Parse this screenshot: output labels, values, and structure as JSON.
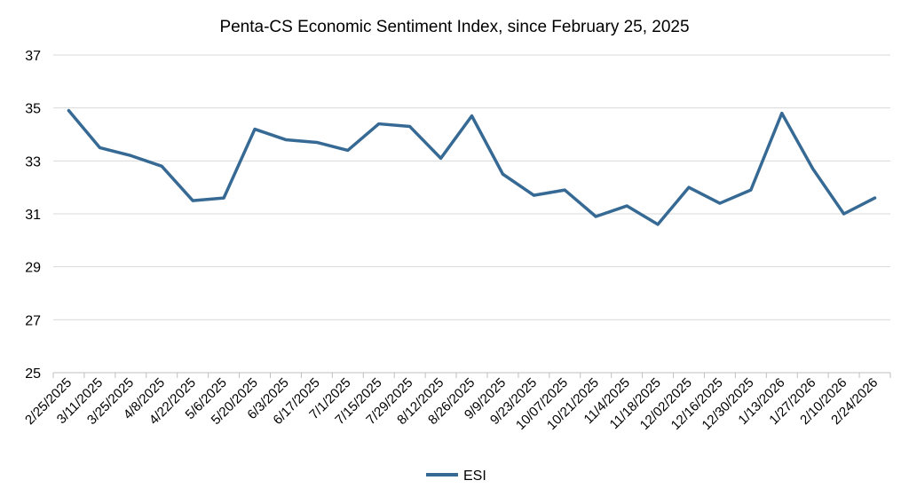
{
  "chart_data": {
    "type": "line",
    "title": "Penta-CS Economic Sentiment Index, since February 25, 2025",
    "xlabel": "",
    "ylabel": "",
    "ylim": [
      25,
      37
    ],
    "yticks": [
      25,
      27,
      29,
      31,
      33,
      35,
      37
    ],
    "grid": true,
    "legend_position": "bottom",
    "categories": [
      "2/25/2025",
      "3/11/2025",
      "3/25/2025",
      "4/8/2025",
      "4/22/2025",
      "5/6/2025",
      "5/20/2025",
      "6/3/2025",
      "6/17/2025",
      "7/1/2025",
      "7/15/2025",
      "7/29/2025",
      "8/12/2025",
      "8/26/2025",
      "9/9/2025",
      "9/23/2025",
      "10/07/2025",
      "10/21/2025",
      "11/4/2025",
      "11/18/2025",
      "12/02/2025",
      "12/16/2025",
      "12/30/2025",
      "1/13/2026",
      "1/27/2026",
      "2/10/2026",
      "2/24/2026"
    ],
    "series": [
      {
        "name": "ESI",
        "color": "#366a94",
        "values": [
          34.9,
          33.5,
          33.2,
          32.8,
          31.5,
          31.6,
          34.2,
          33.8,
          33.7,
          33.4,
          34.4,
          34.3,
          33.1,
          34.7,
          32.5,
          31.7,
          31.9,
          30.9,
          31.3,
          30.6,
          32.0,
          31.4,
          31.9,
          34.8,
          32.7,
          31.0,
          31.6
        ]
      }
    ]
  }
}
